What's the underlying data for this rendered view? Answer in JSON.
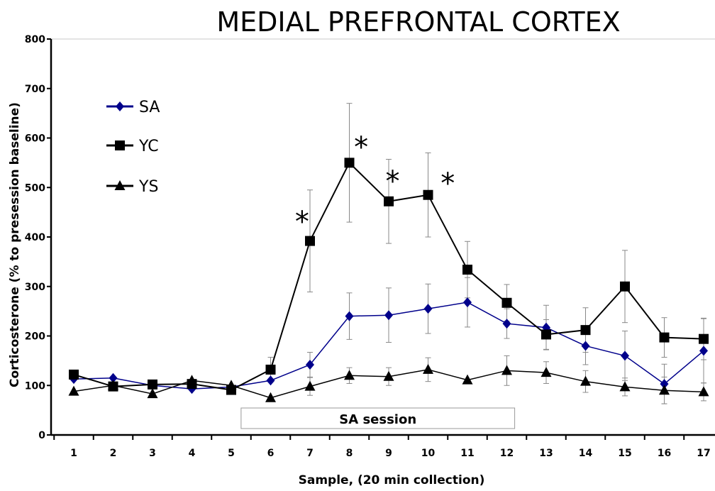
{
  "chart_data": {
    "type": "line",
    "title": "MEDIAL PREFRONTAL CORTEX",
    "xlabel": "Sample,  (20 min collection)",
    "ylabel": "Corticosterone (% to presession baseline)",
    "ylim": [
      0,
      800
    ],
    "yticks": [
      0,
      100,
      200,
      300,
      400,
      500,
      600,
      700,
      800
    ],
    "x": [
      1,
      2,
      3,
      4,
      5,
      6,
      7,
      8,
      9,
      10,
      11,
      12,
      13,
      14,
      15,
      16,
      17
    ],
    "grid": false,
    "legend_position": "top-left",
    "series": [
      {
        "name": "SA",
        "color": "#00008b",
        "marker": "diamond",
        "values": [
          113,
          115,
          100,
          93,
          97,
          110,
          142,
          240,
          242,
          255,
          268,
          225,
          217,
          180,
          160,
          103,
          170
        ],
        "errors": [
          0,
          0,
          0,
          0,
          0,
          0,
          25,
          47,
          55,
          50,
          50,
          30,
          45,
          38,
          50,
          40,
          65
        ]
      },
      {
        "name": "YC",
        "color": "#000000",
        "marker": "square",
        "values": [
          122,
          98,
          102,
          103,
          91,
          132,
          392,
          550,
          472,
          485,
          334,
          267,
          203,
          212,
          300,
          197,
          194
        ],
        "errors": [
          0,
          0,
          0,
          0,
          0,
          25,
          103,
          120,
          85,
          85,
          57,
          37,
          30,
          45,
          73,
          40,
          42
        ]
      },
      {
        "name": "YS",
        "color": "#000000",
        "marker": "triangle",
        "values": [
          88,
          100,
          83,
          110,
          100,
          75,
          98,
          120,
          118,
          132,
          111,
          130,
          126,
          108,
          97,
          90,
          87
        ],
        "errors": [
          0,
          0,
          0,
          0,
          0,
          0,
          18,
          16,
          18,
          24,
          0,
          30,
          22,
          22,
          18,
          27,
          18
        ]
      }
    ],
    "annotations": [
      {
        "text": "*",
        "x": 6.8
      },
      {
        "text": "*",
        "x": 8.3
      },
      {
        "text": "*",
        "x": 9.1
      },
      {
        "text": "*",
        "x": 10.5
      }
    ],
    "session_label": "SA session"
  }
}
